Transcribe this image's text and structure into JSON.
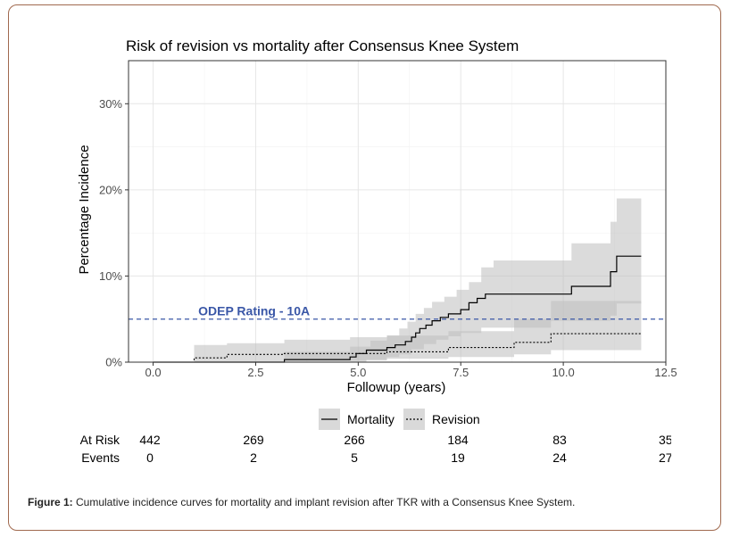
{
  "chart_data": {
    "type": "line",
    "title": "Risk of revision vs mortality after Consensus Knee System",
    "xlabel": "Followup (years)",
    "ylabel": "Percentage Incidence",
    "xlim": [
      -0.6,
      12.5
    ],
    "ylim": [
      0,
      35
    ],
    "x_ticks": [
      0.0,
      2.5,
      5.0,
      7.5,
      10.0,
      12.5
    ],
    "x_tick_labels": [
      "0.0",
      "2.5",
      "5.0",
      "7.5",
      "10.0",
      "12.5"
    ],
    "y_ticks": [
      0,
      10,
      20,
      30
    ],
    "y_tick_labels": [
      "0%",
      "10%",
      "20%",
      "30%"
    ],
    "grid": true,
    "legend_position": "bottom",
    "reference_line": {
      "y": 5,
      "label": "ODEP Rating - 10A",
      "color": "#3a57a7",
      "style": "dashed"
    },
    "series": [
      {
        "name": "Mortality",
        "style": "solid",
        "steps": [
          [
            0,
            0
          ],
          [
            3.2,
            0.3
          ],
          [
            4.8,
            0.6
          ],
          [
            4.95,
            1.0
          ],
          [
            5.2,
            1.4
          ],
          [
            5.7,
            1.7
          ],
          [
            5.9,
            2.0
          ],
          [
            6.15,
            2.4
          ],
          [
            6.3,
            2.9
          ],
          [
            6.4,
            3.4
          ],
          [
            6.5,
            3.9
          ],
          [
            6.65,
            4.3
          ],
          [
            6.8,
            4.8
          ],
          [
            7.0,
            5.2
          ],
          [
            7.2,
            5.6
          ],
          [
            7.5,
            6.1
          ],
          [
            7.7,
            6.9
          ],
          [
            7.9,
            7.4
          ],
          [
            8.1,
            7.9
          ],
          [
            10.2,
            8.8
          ],
          [
            11.15,
            10.5
          ],
          [
            11.3,
            12.3
          ],
          [
            11.9,
            12.3
          ]
        ],
        "ci_lower": [
          [
            0,
            0
          ],
          [
            3.2,
            0
          ],
          [
            4.8,
            0
          ],
          [
            5.2,
            0.3
          ],
          [
            5.7,
            0.6
          ],
          [
            6.0,
            0.9
          ],
          [
            6.3,
            1.5
          ],
          [
            6.6,
            2.1
          ],
          [
            6.9,
            2.6
          ],
          [
            7.2,
            3.0
          ],
          [
            7.5,
            3.4
          ],
          [
            8.0,
            4.0
          ],
          [
            9.7,
            4.8
          ],
          [
            11.15,
            5.4
          ],
          [
            11.3,
            6.8
          ],
          [
            11.9,
            6.8
          ]
        ],
        "ci_upper": [
          [
            0,
            0
          ],
          [
            3.2,
            1.2
          ],
          [
            4.8,
            1.8
          ],
          [
            5.3,
            2.5
          ],
          [
            5.7,
            3.1
          ],
          [
            6.0,
            3.9
          ],
          [
            6.2,
            4.7
          ],
          [
            6.4,
            5.6
          ],
          [
            6.6,
            6.3
          ],
          [
            6.8,
            7.0
          ],
          [
            7.1,
            7.6
          ],
          [
            7.4,
            8.4
          ],
          [
            7.7,
            9.3
          ],
          [
            8.0,
            11.0
          ],
          [
            8.3,
            11.8
          ],
          [
            10.2,
            13.8
          ],
          [
            11.15,
            16.3
          ],
          [
            11.3,
            19.0
          ],
          [
            11.9,
            19.0
          ]
        ]
      },
      {
        "name": "Revision",
        "style": "dotted",
        "steps": [
          [
            0,
            0
          ],
          [
            1.0,
            0.5
          ],
          [
            1.8,
            0.9
          ],
          [
            3.2,
            1.0
          ],
          [
            5.7,
            1.2
          ],
          [
            7.2,
            1.7
          ],
          [
            8.8,
            2.3
          ],
          [
            9.7,
            3.3
          ],
          [
            11.9,
            3.3
          ]
        ],
        "ci_lower": [
          [
            0,
            0
          ],
          [
            1.0,
            0
          ],
          [
            3.2,
            0.2
          ],
          [
            5.7,
            0.4
          ],
          [
            7.2,
            0.6
          ],
          [
            8.8,
            0.9
          ],
          [
            9.7,
            1.4
          ],
          [
            11.9,
            1.4
          ]
        ],
        "ci_upper": [
          [
            0,
            0
          ],
          [
            1.0,
            2.0
          ],
          [
            1.8,
            2.2
          ],
          [
            3.2,
            2.6
          ],
          [
            4.8,
            2.9
          ],
          [
            5.7,
            3.1
          ],
          [
            7.2,
            3.6
          ],
          [
            8.8,
            5.0
          ],
          [
            9.7,
            7.1
          ],
          [
            11.9,
            7.1
          ]
        ]
      }
    ]
  },
  "risk_table": {
    "rows": [
      {
        "label": "At Risk",
        "values": [
          "442",
          "269",
          "266",
          "184",
          "83",
          "35"
        ]
      },
      {
        "label": "Events",
        "values": [
          "0",
          "2",
          "5",
          "19",
          "24",
          "27"
        ]
      }
    ],
    "times": [
      0.0,
      2.5,
      5.0,
      7.5,
      10.0,
      12.5
    ]
  },
  "caption": {
    "bold": "Figure 1:",
    "text": " Cumulative incidence curves for mortality and implant revision after TKR with a Consensus Knee System."
  }
}
